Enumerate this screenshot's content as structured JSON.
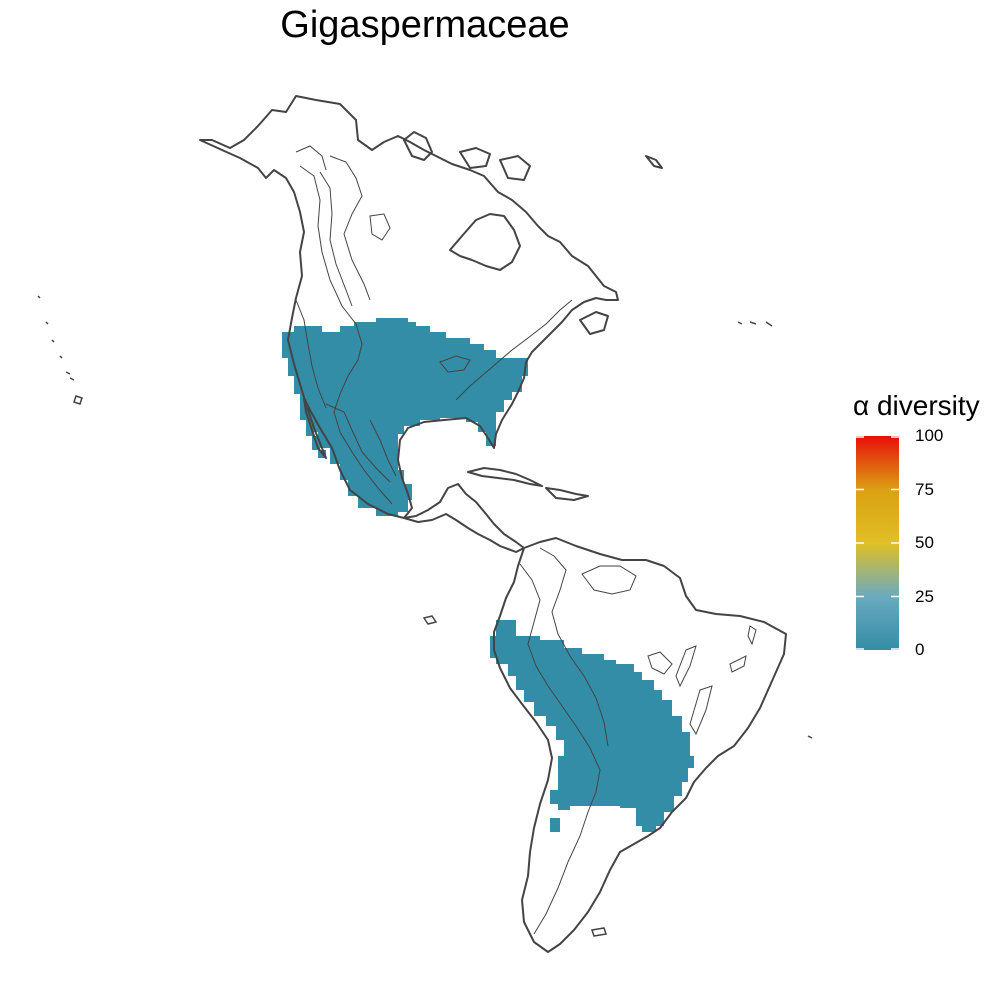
{
  "map": {
    "title": "Gigaspermaceae",
    "region": "Americas",
    "fill_color": "#338da6",
    "outline_color": "#444444",
    "occupied_regions": [
      "Western North America",
      "Southern United States",
      "Mexico",
      "Andes",
      "Central South America",
      "Southern Brazil"
    ]
  },
  "legend": {
    "title": "α diversity",
    "scale_min": 0,
    "scale_max": 100,
    "ticks": [
      {
        "value": 100,
        "label": "100"
      },
      {
        "value": 75,
        "label": "75"
      },
      {
        "value": 50,
        "label": "50"
      },
      {
        "value": 25,
        "label": "25"
      },
      {
        "value": 0,
        "label": "0"
      }
    ],
    "gradient_stops": [
      {
        "value": 0,
        "color": "#338da6"
      },
      {
        "value": 25,
        "color": "#6aaabf"
      },
      {
        "value": 50,
        "color": "#e0c025"
      },
      {
        "value": 75,
        "color": "#dba013"
      },
      {
        "value": 100,
        "color": "#e80e0a"
      }
    ]
  }
}
